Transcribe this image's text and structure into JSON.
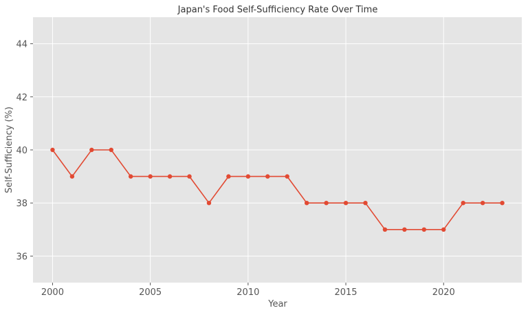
{
  "chart_data": {
    "type": "line",
    "title": "Japan's Food Self-Sufficiency Rate Over Time",
    "xlabel": "Year",
    "ylabel": "Self-Sufficiency (%)",
    "xlim": [
      1999,
      2024
    ],
    "ylim": [
      35,
      45
    ],
    "xticks": [
      2000,
      2005,
      2010,
      2015,
      2020
    ],
    "yticks": [
      36,
      38,
      40,
      42,
      44
    ],
    "grid": true,
    "series": [
      {
        "color": "#e24a33",
        "x": [
          2000,
          2001,
          2002,
          2003,
          2004,
          2005,
          2006,
          2007,
          2008,
          2009,
          2010,
          2011,
          2012,
          2013,
          2014,
          2015,
          2016,
          2017,
          2018,
          2019,
          2020,
          2021,
          2022,
          2023
        ],
        "values": [
          40,
          39,
          40,
          40,
          39,
          39,
          39,
          39,
          38,
          39,
          39,
          39,
          39,
          38,
          38,
          38,
          38,
          37,
          37,
          37,
          37,
          38,
          38,
          38
        ]
      }
    ]
  }
}
